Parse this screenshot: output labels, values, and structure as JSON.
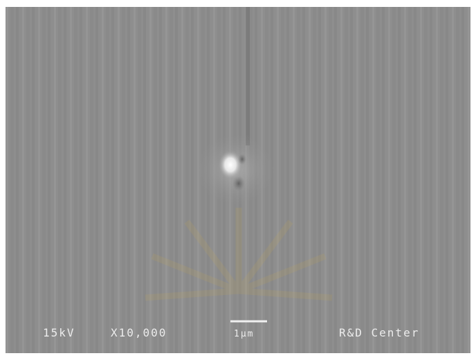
{
  "micrograph": {
    "voltage": "15kV",
    "magnification": "X10,000",
    "scale_bar": "1μm",
    "facility": "R&D Center"
  }
}
